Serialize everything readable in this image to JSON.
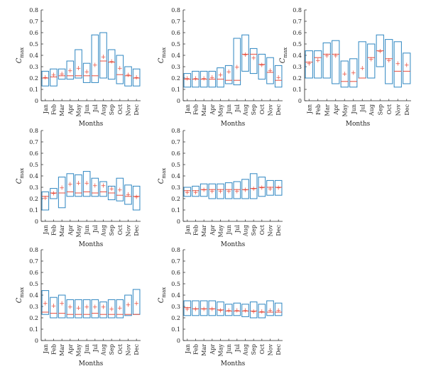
{
  "labels": {
    "xlabel": "Months",
    "ylabel_main": "C",
    "ylabel_sub": "max"
  },
  "colors": {
    "box": "#2e86c1",
    "median": "#e74c3c",
    "mean": "#e74c3c",
    "axis": "#222222"
  },
  "chart_data": [
    {
      "type": "box",
      "ylim": [
        0,
        0.8
      ],
      "yticks": [
        "0",
        "0.1",
        "0.2",
        "0.3",
        "0.4",
        "0.5",
        "0.6",
        "0.7",
        "0.8"
      ],
      "categories": [
        "Jan",
        "Feb",
        "Mar",
        "Apr",
        "May",
        "Jun",
        "Jul",
        "Aug",
        "Sep",
        "Oct",
        "Nov",
        "Dec"
      ],
      "xlabel": "Months",
      "ylabel": "Cmax",
      "q1": [
        0.13,
        0.13,
        0.19,
        0.19,
        0.2,
        0.16,
        0.16,
        0.2,
        0.19,
        0.15,
        0.13,
        0.13
      ],
      "q3": [
        0.26,
        0.28,
        0.28,
        0.35,
        0.45,
        0.33,
        0.58,
        0.6,
        0.45,
        0.4,
        0.3,
        0.28
      ],
      "median": [
        0.2,
        0.21,
        0.22,
        0.22,
        0.22,
        0.22,
        0.22,
        0.35,
        0.34,
        0.23,
        0.22,
        0.2
      ],
      "mean": [
        0.21,
        0.23,
        0.24,
        0.27,
        0.29,
        0.26,
        0.32,
        0.39,
        0.35,
        0.29,
        0.23,
        0.21
      ]
    },
    {
      "type": "box",
      "ylim": [
        0,
        0.8
      ],
      "yticks": [
        "0",
        "0.1",
        "0.2",
        "0.3",
        "0.4",
        "0.5",
        "0.6",
        "0.7",
        "0.8"
      ],
      "categories": [
        "Jan",
        "Feb",
        "Mar",
        "Apr",
        "May",
        "Jun",
        "Jul",
        "Aug",
        "Sep",
        "Oct",
        "Nov",
        "Dec"
      ],
      "xlabel": "Months",
      "ylabel": "Cmax",
      "q1": [
        0.12,
        0.12,
        0.12,
        0.12,
        0.12,
        0.15,
        0.14,
        0.26,
        0.24,
        0.19,
        0.15,
        0.12
      ],
      "q3": [
        0.24,
        0.26,
        0.26,
        0.26,
        0.29,
        0.31,
        0.55,
        0.58,
        0.46,
        0.41,
        0.38,
        0.31
      ],
      "median": [
        0.19,
        0.19,
        0.19,
        0.19,
        0.19,
        0.18,
        0.18,
        0.41,
        0.41,
        0.32,
        0.25,
        0.18
      ],
      "mean": [
        0.2,
        0.2,
        0.2,
        0.21,
        0.23,
        0.26,
        0.3,
        0.41,
        0.38,
        0.32,
        0.27,
        0.21
      ]
    },
    {
      "type": "box",
      "ylim": [
        0,
        0.8
      ],
      "yticks": [
        "0",
        "0.1",
        "0.2",
        "0.3",
        "0.4",
        "0.5",
        "0.6",
        "0.7",
        "0.8"
      ],
      "categories": [
        "Jan",
        "Feb",
        "Mar",
        "Apr",
        "May",
        "Jun",
        "Jul",
        "Aug",
        "Sep",
        "Oct",
        "Nov",
        "Dec"
      ],
      "xlabel": "Months",
      "ylabel": "Cmax",
      "q1": [
        0.2,
        0.2,
        0.2,
        0.15,
        0.12,
        0.12,
        0.2,
        0.2,
        0.3,
        0.15,
        0.12,
        0.15
      ],
      "q3": [
        0.44,
        0.44,
        0.51,
        0.53,
        0.35,
        0.37,
        0.52,
        0.5,
        0.58,
        0.54,
        0.52,
        0.42
      ],
      "median": [
        0.34,
        0.38,
        0.41,
        0.41,
        0.17,
        0.17,
        0.2,
        0.38,
        0.44,
        0.37,
        0.26,
        0.26
      ],
      "mean": [
        0.33,
        0.36,
        0.4,
        0.4,
        0.24,
        0.25,
        0.29,
        0.37,
        0.44,
        0.36,
        0.33,
        0.32
      ]
    },
    {
      "type": "box",
      "ylim": [
        0,
        0.8
      ],
      "yticks": [
        "0",
        "0.1",
        "0.2",
        "0.3",
        "0.4",
        "0.5",
        "0.6",
        "0.7",
        "0.8"
      ],
      "categories": [
        "Jan",
        "Feb",
        "Mar",
        "Apr",
        "May",
        "Jun",
        "Jul",
        "Aug",
        "Sep",
        "Oct",
        "Nov",
        "Dec"
      ],
      "xlabel": "Months",
      "ylabel": "Cmax",
      "q1": [
        0.1,
        0.2,
        0.12,
        0.22,
        0.22,
        0.22,
        0.22,
        0.22,
        0.19,
        0.18,
        0.15,
        0.1
      ],
      "q3": [
        0.26,
        0.29,
        0.39,
        0.42,
        0.41,
        0.44,
        0.38,
        0.35,
        0.31,
        0.38,
        0.32,
        0.31
      ],
      "median": [
        0.22,
        0.25,
        0.25,
        0.26,
        0.25,
        0.26,
        0.25,
        0.26,
        0.25,
        0.23,
        0.22,
        0.22
      ],
      "mean": [
        0.21,
        0.25,
        0.3,
        0.33,
        0.34,
        0.34,
        0.32,
        0.32,
        0.29,
        0.28,
        0.24,
        0.22
      ]
    },
    {
      "type": "box",
      "ylim": [
        0,
        0.8
      ],
      "yticks": [
        "0",
        "0.1",
        "0.2",
        "0.3",
        "0.4",
        "0.5",
        "0.6",
        "0.7",
        "0.8"
      ],
      "categories": [
        "Jan",
        "Feb",
        "Mar",
        "Apr",
        "May",
        "Jun",
        "Jul",
        "Aug",
        "Sep",
        "Oct",
        "Nov",
        "Dec"
      ],
      "xlabel": "Months",
      "ylabel": "Cmax",
      "q1": [
        0.22,
        0.22,
        0.22,
        0.2,
        0.2,
        0.2,
        0.2,
        0.2,
        0.2,
        0.22,
        0.23,
        0.23
      ],
      "q3": [
        0.3,
        0.31,
        0.33,
        0.33,
        0.33,
        0.34,
        0.35,
        0.37,
        0.42,
        0.39,
        0.36,
        0.36
      ],
      "median": [
        0.27,
        0.27,
        0.28,
        0.28,
        0.28,
        0.28,
        0.28,
        0.28,
        0.29,
        0.3,
        0.3,
        0.3
      ],
      "mean": [
        0.26,
        0.26,
        0.28,
        0.27,
        0.27,
        0.27,
        0.27,
        0.28,
        0.29,
        0.3,
        0.29,
        0.3
      ]
    },
    {
      "type": "box",
      "ylim": [
        0,
        0.8
      ],
      "yticks": [
        "0",
        "0.1",
        "0.2",
        "0.3",
        "0.4",
        "0.5",
        "0.6",
        "0.7",
        "0.8"
      ],
      "categories": [
        "Jan",
        "Feb",
        "Mar",
        "Apr",
        "May",
        "Jun",
        "Jul",
        "Aug",
        "Sep",
        "Oct",
        "Nov",
        "Dec"
      ],
      "xlabel": "Months",
      "ylabel": "Cmax",
      "q1": [
        0.23,
        0.2,
        0.2,
        0.2,
        0.2,
        0.2,
        0.2,
        0.2,
        0.2,
        0.2,
        0.22,
        0.23
      ],
      "q3": [
        0.44,
        0.38,
        0.4,
        0.36,
        0.36,
        0.36,
        0.36,
        0.34,
        0.36,
        0.36,
        0.4,
        0.45
      ],
      "median": [
        0.25,
        0.24,
        0.24,
        0.23,
        0.23,
        0.23,
        0.24,
        0.23,
        0.23,
        0.23,
        0.23,
        0.23
      ],
      "mean": [
        0.33,
        0.31,
        0.33,
        0.3,
        0.29,
        0.3,
        0.3,
        0.3,
        0.28,
        0.29,
        0.32,
        0.33
      ]
    },
    {
      "type": "box",
      "ylim": [
        0,
        0.8
      ],
      "yticks": [
        "0",
        "0.1",
        "0.2",
        "0.3",
        "0.4",
        "0.5",
        "0.6",
        "0.7",
        "0.8"
      ],
      "categories": [
        "Jan",
        "Feb",
        "Mar",
        "Apr",
        "May",
        "Jun",
        "Jul",
        "Aug",
        "Sep",
        "Oct",
        "Nov",
        "Dec"
      ],
      "xlabel": "Months",
      "ylabel": "Cmax",
      "q1": [
        0.22,
        0.22,
        0.22,
        0.22,
        0.22,
        0.22,
        0.22,
        0.21,
        0.2,
        0.2,
        0.22,
        0.22
      ],
      "q3": [
        0.35,
        0.35,
        0.35,
        0.35,
        0.34,
        0.32,
        0.33,
        0.32,
        0.34,
        0.32,
        0.35,
        0.33
      ],
      "median": [
        0.29,
        0.28,
        0.28,
        0.28,
        0.27,
        0.26,
        0.26,
        0.26,
        0.26,
        0.25,
        0.25,
        0.25
      ],
      "mean": [
        0.28,
        0.28,
        0.28,
        0.28,
        0.27,
        0.27,
        0.27,
        0.27,
        0.26,
        0.26,
        0.27,
        0.27
      ]
    }
  ]
}
